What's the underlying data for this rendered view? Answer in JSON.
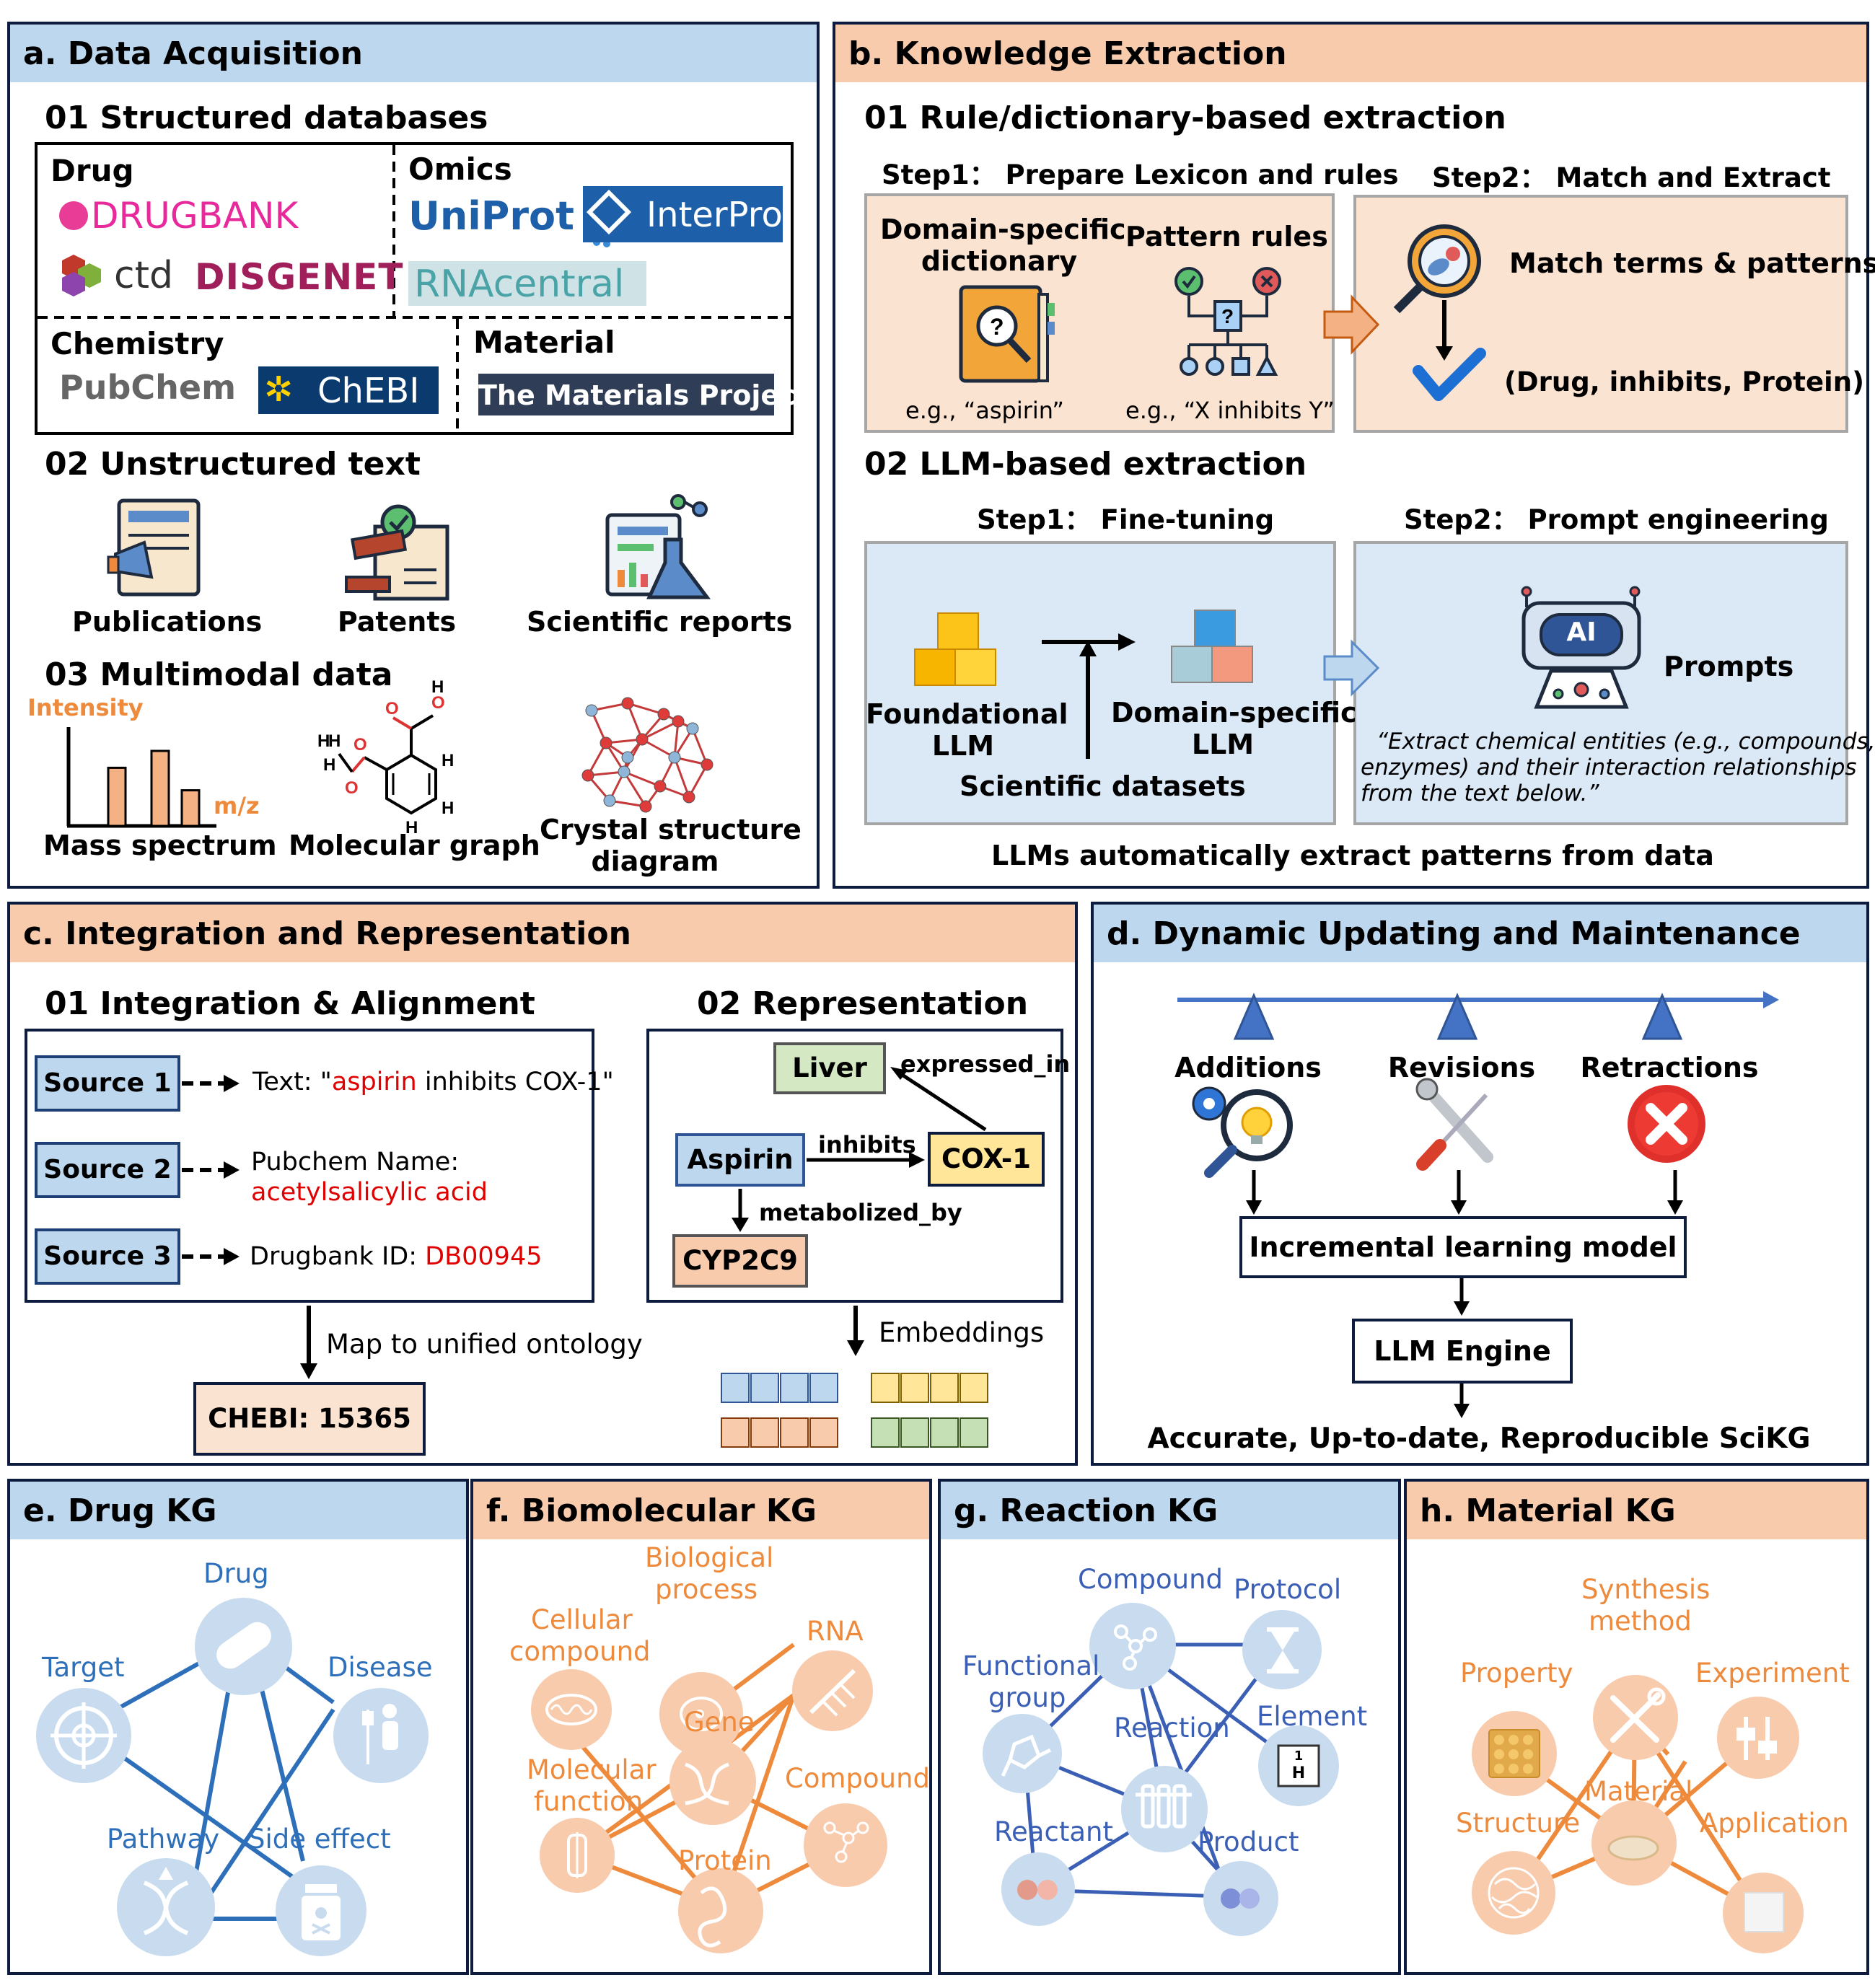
{
  "colors": {
    "navy": "#0d1b3e",
    "blue_head": "#bdd7ee",
    "orange_head": "#f8cbad",
    "edge_blue": "#2e6fba",
    "edge_orange": "#ee8a3c",
    "red_text": "#e00000"
  },
  "a": {
    "title": "a. Data Acquisition",
    "s1": "01 Structured databases",
    "drug_label": "Drug",
    "omics_label": "Omics",
    "chem_label": "Chemistry",
    "material_label": "Material",
    "logos": {
      "drugbank": "DRUGBANK",
      "ctd": "ctd",
      "disgenet": "DISGENET",
      "uniprot": "UniProt",
      "interpro": "InterPro",
      "rnacentral": "RNAcentral",
      "pubchem": "PubChem",
      "chebi": "ChEBI",
      "materials_project": "The Materials Project"
    },
    "s2": "02 Unstructured text",
    "text_items": [
      "Publications",
      "Patents",
      "Scientific reports"
    ],
    "s3": "03 Multimodal data",
    "intensity": "Intensity",
    "mz": "m/z",
    "mass_spectrum": "Mass spectrum",
    "molecular_graph": "Molecular graph",
    "crystal_line1": "Crystal structure",
    "crystal_line2": "diagram",
    "mass_bars": [
      0.62,
      0.8,
      0.38
    ]
  },
  "b": {
    "title": "b. Knowledge Extraction",
    "s1": "01 Rule/dictionary-based extraction",
    "step1": "Step1： Prepare Lexicon and rules",
    "step2": "Step2： Match and Extract",
    "dict_line1": "Domain-specific",
    "dict_line2": "dictionary",
    "pattern_rules": "Pattern rules",
    "eg1": "e.g.,   “aspirin”",
    "eg2": "e.g.,   “X inhibits Y”",
    "match": "Match terms & patterns",
    "triple": "(Drug, inhibits, Protein)",
    "s2": "02 LLM-based extraction",
    "step1b": "Step1： Fine-tuning",
    "step2b": "Step2： Prompt engineering",
    "found_line1": "Foundational",
    "found_line2": "LLM",
    "domain_line1": "Domain-specific",
    "domain_line2": "LLM",
    "sci_datasets": "Scientific datasets",
    "prompts": "Prompts",
    "ai": "AI",
    "quote_line1": "“Extract chemical entities (e.g., compounds,",
    "quote_line2": "enzymes) and their interaction relationships",
    "quote_line3": "from the text below.”",
    "footer": "LLMs automatically extract patterns from data"
  },
  "c": {
    "title": "c. Integration and Representation",
    "s1": "01 Integration & Alignment",
    "s2": "02 Representation",
    "sources": [
      {
        "label": "Source 1",
        "pre": "Text: \"",
        "red": "aspirin",
        "post": " inhibits COX-1\""
      },
      {
        "label": "Source 2",
        "pre": "Pubchem Name:",
        "red": "acetylsalicylic acid",
        "post": ""
      },
      {
        "label": "Source 3",
        "pre": "Drugbank ID: ",
        "red": "DB00945",
        "post": ""
      }
    ],
    "map_label": "Map to unified ontology",
    "chebi_id": "CHEBI: 15365",
    "nodes": {
      "liver": "Liver",
      "aspirin": "Aspirin",
      "cox1": "COX-1",
      "cyp": "CYP2C9"
    },
    "edges": {
      "expressed_in": "expressed_in",
      "inhibits": "inhibits",
      "metabolized_by": "metabolized_by"
    },
    "embeddings": "Embeddings"
  },
  "d": {
    "title": "d. Dynamic Updating and Maintenance",
    "events": [
      "Additions",
      "Revisions",
      "Retractions"
    ],
    "incremental": "Incremental learning model",
    "engine": "LLM Engine",
    "footer": "Accurate, Up-to-date, Reproducible SciKG"
  },
  "e": {
    "title": "e. Drug KG",
    "nodes": [
      "Drug",
      "Target",
      "Disease",
      "Pathway",
      "Side effect"
    ]
  },
  "f": {
    "title": "f. Biomolecular KG",
    "nodes": [
      "Biological",
      "process",
      "Cellular",
      "compound",
      "RNA",
      "Gene",
      "Molecular",
      "function",
      "Compound",
      "Protein"
    ]
  },
  "g": {
    "title": "g. Reaction KG",
    "nodes": [
      "Compound",
      "Protocol",
      "Functional",
      "group",
      "Reaction",
      "Element",
      "Reactant",
      "Product"
    ],
    "element_symbol": "H",
    "element_number": "1"
  },
  "h": {
    "title": "h. Material KG",
    "nodes": [
      "Synthesis",
      "method",
      "Property",
      "Experiment",
      "Material",
      "Structure",
      "Application"
    ]
  }
}
